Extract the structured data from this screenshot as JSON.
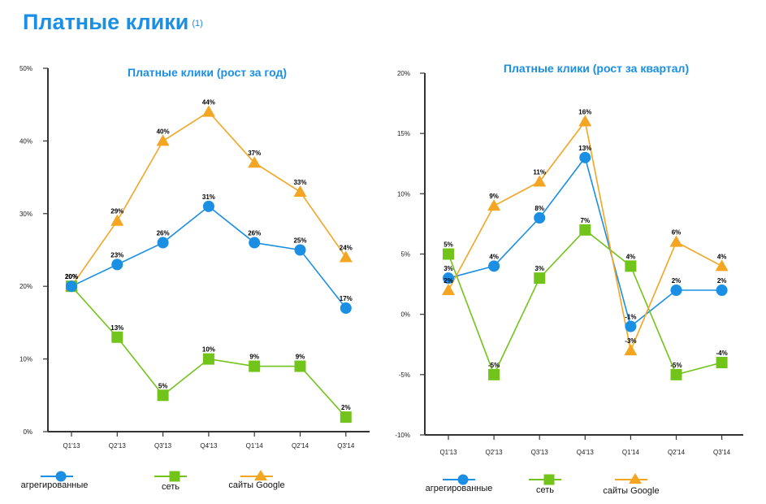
{
  "page": {
    "title": "Платные клики",
    "title_note": "(1)"
  },
  "colors": {
    "title": "#1a8fe3",
    "aggregated": "#1a8fe3",
    "network": "#72c41b",
    "google_sites": "#f4a522",
    "axis": "#333333"
  },
  "chart_data": [
    {
      "type": "line",
      "title": "Платные клики (рост за год)",
      "xlabel": "",
      "ylabel": "",
      "categories": [
        "Q1'13",
        "Q2'13",
        "Q3'13",
        "Q4'13",
        "Q1'14",
        "Q2'14",
        "Q3'14"
      ],
      "ylim": [
        0,
        50
      ],
      "yticks": [
        0,
        10,
        20,
        30,
        40,
        50
      ],
      "ytick_labels": [
        "0%",
        "10%",
        "20%",
        "30%",
        "40%",
        "50%"
      ],
      "grid": false,
      "legend_position": "bottom",
      "series": [
        {
          "name": "агрегированные",
          "key": "aggregated",
          "marker": "circle",
          "values": [
            20,
            23,
            26,
            31,
            26,
            25,
            17
          ],
          "labels": [
            "20%",
            "23%",
            "26%",
            "31%",
            "26%",
            "25%",
            "17%"
          ]
        },
        {
          "name": "сеть",
          "key": "network",
          "marker": "square",
          "values": [
            20,
            13,
            5,
            10,
            9,
            9,
            2
          ],
          "labels": [
            "20%",
            "13%",
            "5%",
            "10%",
            "9%",
            "9%",
            "2%"
          ]
        },
        {
          "name": "сайты Google",
          "key": "google_sites",
          "marker": "triangle",
          "values": [
            20,
            29,
            40,
            44,
            37,
            33,
            24
          ],
          "labels": [
            "20%",
            "29%",
            "40%",
            "44%",
            "37%",
            "33%",
            "24%"
          ]
        }
      ]
    },
    {
      "type": "line",
      "title": "Платные клики (рост за квартал)",
      "xlabel": "",
      "ylabel": "",
      "categories": [
        "Q1'13",
        "Q2'13",
        "Q3'13",
        "Q4'13",
        "Q1'14",
        "Q2'14",
        "Q3'14"
      ],
      "ylim": [
        -10,
        20
      ],
      "yticks": [
        -10,
        -5,
        0,
        5,
        10,
        15,
        20
      ],
      "ytick_labels": [
        "-10%",
        "-5%",
        "0%",
        "5%",
        "10%",
        "15%",
        "20%"
      ],
      "grid": false,
      "legend_position": "bottom",
      "series": [
        {
          "name": "агрегированные",
          "key": "aggregated",
          "marker": "circle",
          "values": [
            3,
            4,
            8,
            13,
            -1,
            2,
            2
          ],
          "labels": [
            "3%",
            "4%",
            "8%",
            "13%",
            "-1%",
            "2%",
            "2%"
          ]
        },
        {
          "name": "сеть",
          "key": "network",
          "marker": "square",
          "values": [
            5,
            -5,
            3,
            7,
            4,
            -5,
            -4
          ],
          "labels": [
            "5%",
            "-5%",
            "3%",
            "7%",
            "4%",
            "-5%",
            "-4%"
          ]
        },
        {
          "name": "сайты Google",
          "key": "google_sites",
          "marker": "triangle",
          "values": [
            2,
            9,
            11,
            16,
            -3,
            6,
            4
          ],
          "labels": [
            "2%",
            "9%",
            "11%",
            "16%",
            "-3%",
            "6%",
            "4%"
          ]
        }
      ]
    }
  ]
}
